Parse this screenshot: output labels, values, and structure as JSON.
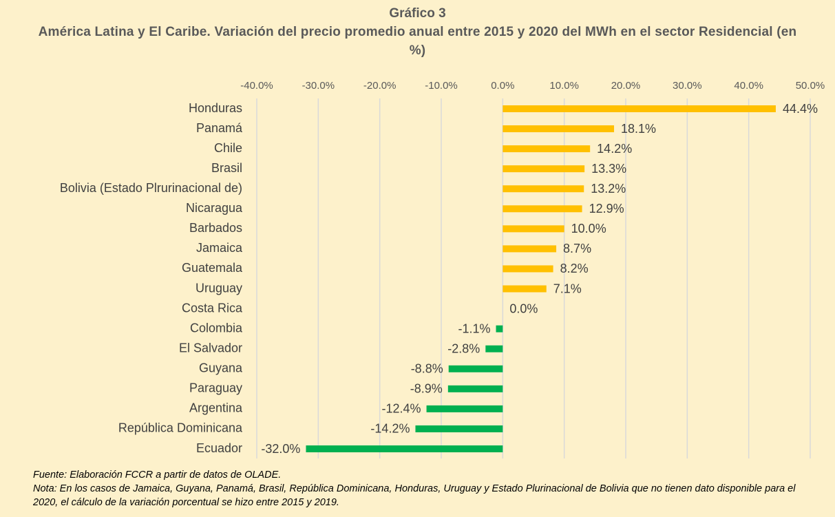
{
  "chart_data": {
    "type": "barh",
    "subtitle": "Gráfico 3",
    "title": "América Latina y El Caribe. Variación del precio promedio anual entre 2015 y 2020 del MWh en el sector Residencial (en %)",
    "categories": [
      "Honduras",
      "Panamá",
      "Chile",
      "Brasil",
      "Bolivia (Estado Plrurinacional de)",
      "Nicaragua",
      "Barbados",
      "Jamaica",
      "Guatemala",
      "Uruguay",
      "Costa Rica",
      "Colombia",
      "El Salvador",
      "Guyana",
      "Paraguay",
      "Argentina",
      "República Dominicana",
      "Ecuador"
    ],
    "values": [
      44.4,
      18.1,
      14.2,
      13.3,
      13.2,
      12.9,
      10.0,
      8.7,
      8.2,
      7.1,
      0.0,
      -1.1,
      -2.8,
      -8.8,
      -8.9,
      -12.4,
      -14.2,
      -32.0
    ],
    "value_labels": [
      "44.4%",
      "18.1%",
      "14.2%",
      "13.3%",
      "13.2%",
      "12.9%",
      "10.0%",
      "8.7%",
      "8.2%",
      "7.1%",
      "0.0%",
      "-1.1%",
      "-2.8%",
      "-8.8%",
      "-8.9%",
      "-12.4%",
      "-14.2%",
      "-32.0%"
    ],
    "positive_color": "#ffc000",
    "negative_color": "#00b050",
    "xlim": [
      -40,
      50
    ],
    "xticks": [
      {
        "value": -40,
        "label": "-40.0%"
      },
      {
        "value": -30,
        "label": "-30.0%"
      },
      {
        "value": -20,
        "label": "-20.0%"
      },
      {
        "value": -10,
        "label": "-10.0%"
      },
      {
        "value": 0,
        "label": "0.0%"
      },
      {
        "value": 10,
        "label": "10.0%"
      },
      {
        "value": 20,
        "label": "20.0%"
      },
      {
        "value": 30,
        "label": "30.0%"
      },
      {
        "value": 40,
        "label": "40.0%"
      },
      {
        "value": 50,
        "label": "50.0%"
      }
    ],
    "grid": true,
    "source": "Fuente: Elaboración FCCR a partir de datos de OLADE.",
    "note": "Nota: En los casos de Jamaica, Guyana, Panamá, Brasil, República Dominicana, Honduras, Uruguay y Estado Plurinacional de Bolivia que no tienen dato disponible para el 2020, el cálculo de la variación porcentual se hizo entre 2015 y 2019."
  }
}
